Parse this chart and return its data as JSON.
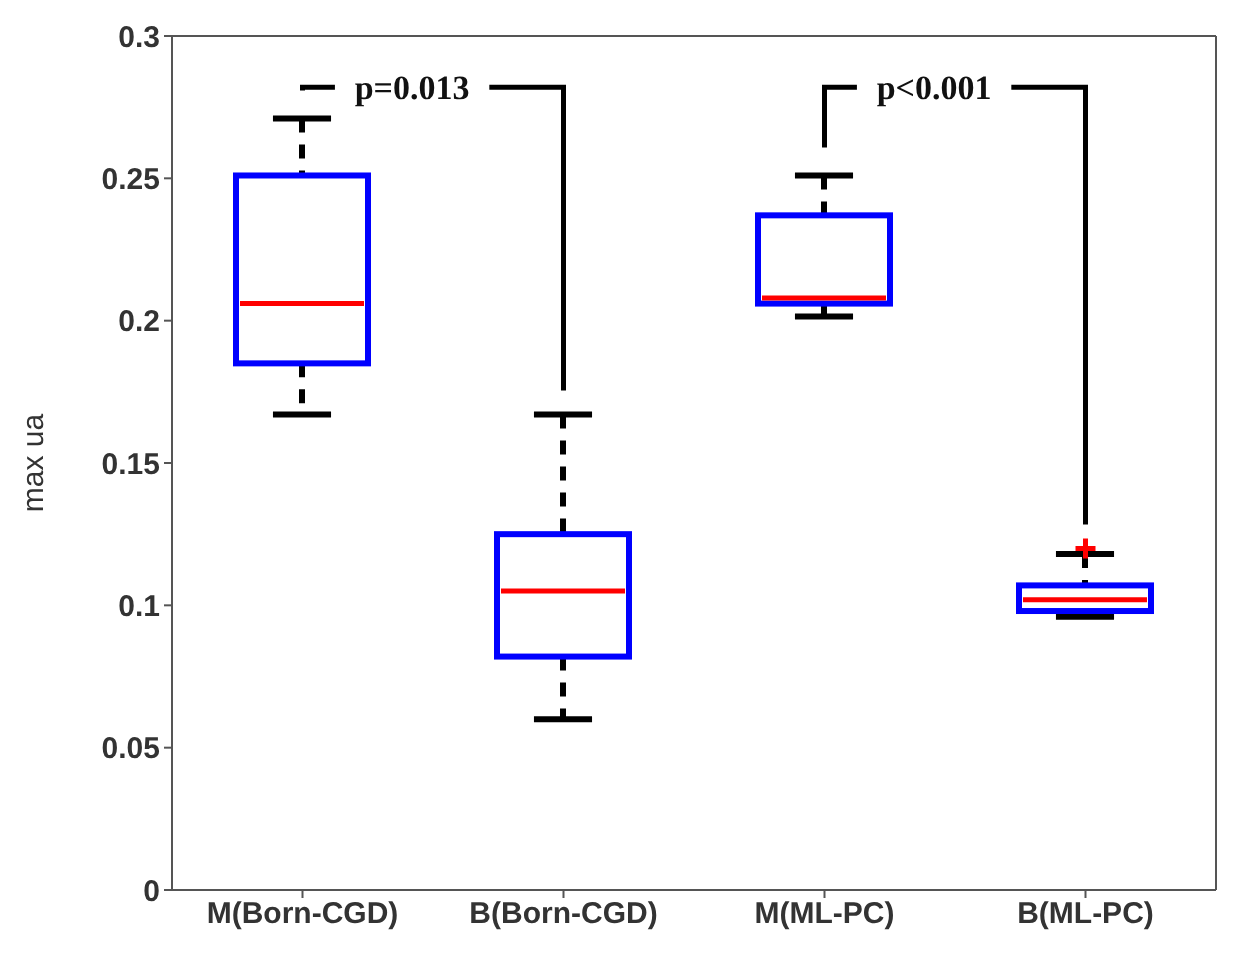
{
  "chart_data": {
    "type": "box",
    "ylabel": "max ua",
    "categories": [
      "M(Born-CGD)",
      "B(Born-CGD)",
      "M(ML-PC)",
      "B(ML-PC)"
    ],
    "boxes": [
      {
        "low": 0.167,
        "q1": 0.185,
        "median": 0.206,
        "q3": 0.251,
        "high": 0.271
      },
      {
        "low": 0.06,
        "q1": 0.082,
        "median": 0.105,
        "q3": 0.125,
        "high": 0.167
      },
      {
        "low": 0.2015,
        "q1": 0.206,
        "median": 0.208,
        "q3": 0.237,
        "high": 0.251
      },
      {
        "low": 0.096,
        "q1": 0.098,
        "median": 0.102,
        "q3": 0.107,
        "high": 0.118,
        "outliers": [
          0.12
        ]
      }
    ],
    "color": "#0000ff",
    "ylim": [
      0,
      0.3
    ],
    "yticks": [
      0,
      0.05,
      0.1,
      0.15,
      0.2,
      0.25,
      0.3
    ],
    "annotations": [
      "p=0.013",
      "p<0.001"
    ]
  }
}
